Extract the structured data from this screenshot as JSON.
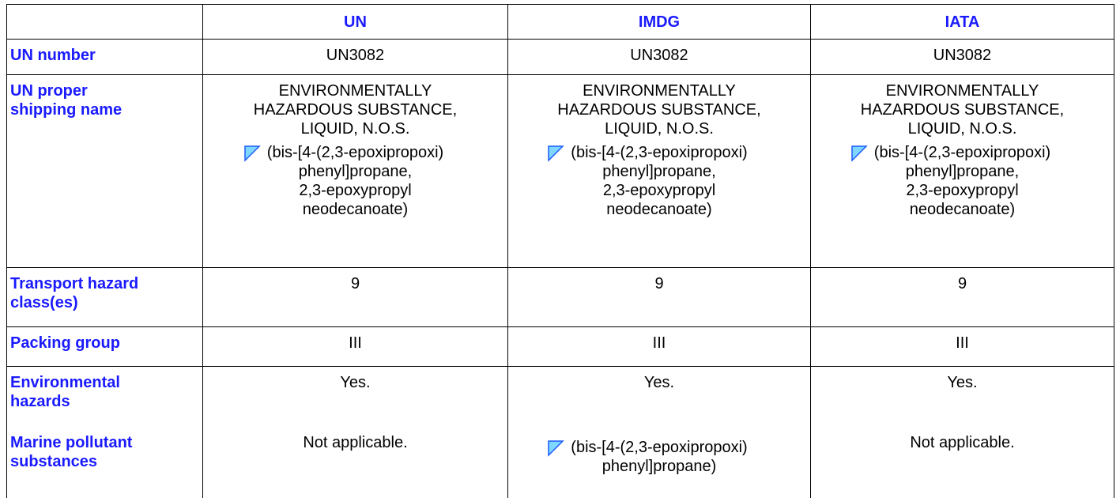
{
  "table": {
    "columns": [
      "UN",
      "IMDG",
      "IATA"
    ],
    "rows": [
      {
        "label": "UN number",
        "cells": [
          {
            "text": "UN3082"
          },
          {
            "text": "UN3082"
          },
          {
            "text": "UN3082"
          }
        ]
      },
      {
        "label": "UN proper\nshipping name",
        "cells": [
          {
            "text": "ENVIRONMENTALLY\nHAZARDOUS SUBSTANCE,\nLIQUID, N.O.S.",
            "note": "(bis-[4-(2,3-epoxipropoxi)\nphenyl]propane,\n2,3-epoxypropyl\nneodecanoate)"
          },
          {
            "text": "ENVIRONMENTALLY\nHAZARDOUS SUBSTANCE,\nLIQUID, N.O.S.",
            "note": "(bis-[4-(2,3-epoxipropoxi)\nphenyl]propane,\n2,3-epoxypropyl\nneodecanoate)"
          },
          {
            "text": "ENVIRONMENTALLY\nHAZARDOUS SUBSTANCE,\nLIQUID, N.O.S.",
            "note": "(bis-[4-(2,3-epoxipropoxi)\nphenyl]propane,\n2,3-epoxypropyl\nneodecanoate)"
          }
        ]
      },
      {
        "label": "Transport hazard\nclass(es)",
        "cells": [
          {
            "text": "9"
          },
          {
            "text": "9"
          },
          {
            "text": "9"
          }
        ]
      },
      {
        "label": "Packing group",
        "cells": [
          {
            "text": "III"
          },
          {
            "text": "III"
          },
          {
            "text": "III"
          }
        ]
      },
      {
        "label": "Environmental\nhazards",
        "cells": [
          {
            "text": "Yes."
          },
          {
            "text": "Yes."
          },
          {
            "text": "Yes."
          }
        ]
      },
      {
        "label": "Marine pollutant\nsubstances",
        "cells": [
          {
            "text": "Not applicable."
          },
          {
            "note": "(bis-[4-(2,3-epoxipropoxi)\nphenyl]propane)"
          },
          {
            "text": "Not applicable."
          }
        ]
      }
    ]
  }
}
